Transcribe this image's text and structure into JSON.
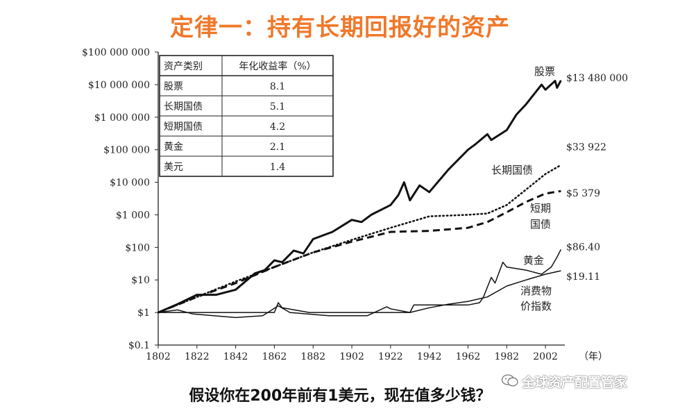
{
  "header": {
    "title": "定律一：持有长期回报好的资产"
  },
  "footer": {
    "question": "假设你在200年前有1美元，现在值多少钱？",
    "watermark": "全球资产配置管家"
  },
  "returns_table": {
    "headers": [
      "资产类别",
      "年化收益率（%）"
    ],
    "rows": [
      {
        "asset": "股票",
        "rate": "8.1"
      },
      {
        "asset": "长期国债",
        "rate": "5.1"
      },
      {
        "asset": "短期国债",
        "rate": "4.2"
      },
      {
        "asset": "黄金",
        "rate": "2.1"
      },
      {
        "asset": "美元",
        "rate": "1.4"
      }
    ]
  },
  "chart_data": {
    "type": "line",
    "scale": "log",
    "title": "",
    "xlabel": "（年）",
    "ylabel": "",
    "xlim": [
      1802,
      2012
    ],
    "ylim": [
      0.1,
      100000000
    ],
    "x_ticks": [
      "1802",
      "1822",
      "1842",
      "1862",
      "1882",
      "1902",
      "1922",
      "1942",
      "1962",
      "1982",
      "2002"
    ],
    "y_ticks": [
      {
        "value": 0.1,
        "label": "$0.1"
      },
      {
        "value": 1,
        "label": "$1"
      },
      {
        "value": 10,
        "label": "$10"
      },
      {
        "value": 100,
        "label": "$100"
      },
      {
        "value": 1000,
        "label": "$1 000"
      },
      {
        "value": 10000,
        "label": "$10 000"
      },
      {
        "value": 100000,
        "label": "$100 000"
      },
      {
        "value": 1000000,
        "label": "$1 000 000"
      },
      {
        "value": 10000000,
        "label": "$10 000 000"
      },
      {
        "value": 100000000,
        "label": "$100 000 000"
      }
    ],
    "grid": false,
    "series": [
      {
        "name": "股票",
        "style": "solid-thick",
        "end_label": "$13 480 000",
        "points": [
          [
            1802,
            1
          ],
          [
            1812,
            1.8
          ],
          [
            1822,
            3.5
          ],
          [
            1832,
            3.5
          ],
          [
            1842,
            5
          ],
          [
            1852,
            16
          ],
          [
            1857,
            20
          ],
          [
            1862,
            40
          ],
          [
            1866,
            35
          ],
          [
            1872,
            80
          ],
          [
            1877,
            65
          ],
          [
            1882,
            180
          ],
          [
            1892,
            300
          ],
          [
            1902,
            700
          ],
          [
            1907,
            600
          ],
          [
            1912,
            1000
          ],
          [
            1922,
            2000
          ],
          [
            1926,
            4000
          ],
          [
            1929,
            10000
          ],
          [
            1932,
            2800
          ],
          [
            1937,
            8000
          ],
          [
            1942,
            5000
          ],
          [
            1952,
            25000
          ],
          [
            1962,
            100000
          ],
          [
            1966,
            150000
          ],
          [
            1972,
            300000
          ],
          [
            1974,
            200000
          ],
          [
            1982,
            400000
          ],
          [
            1987,
            1200000
          ],
          [
            1992,
            2500000
          ],
          [
            2000,
            10000000
          ],
          [
            2002,
            7000000
          ],
          [
            2007,
            13000000
          ],
          [
            2008,
            8000000
          ],
          [
            2010,
            13480000
          ]
        ]
      },
      {
        "name": "长期国债",
        "style": "dotted",
        "end_label": "$33 922",
        "points": [
          [
            1802,
            1
          ],
          [
            1822,
            3
          ],
          [
            1842,
            9
          ],
          [
            1862,
            25
          ],
          [
            1882,
            70
          ],
          [
            1902,
            170
          ],
          [
            1922,
            400
          ],
          [
            1942,
            900
          ],
          [
            1962,
            1000
          ],
          [
            1972,
            1100
          ],
          [
            1982,
            2000
          ],
          [
            1992,
            6000
          ],
          [
            2002,
            18000
          ],
          [
            2010,
            33922
          ]
        ]
      },
      {
        "name": "短期国债",
        "style": "dashed",
        "end_label": "$5 379",
        "points": [
          [
            1802,
            1
          ],
          [
            1822,
            3
          ],
          [
            1842,
            8
          ],
          [
            1862,
            25
          ],
          [
            1882,
            70
          ],
          [
            1902,
            150
          ],
          [
            1922,
            300
          ],
          [
            1942,
            320
          ],
          [
            1962,
            400
          ],
          [
            1972,
            600
          ],
          [
            1982,
            1200
          ],
          [
            1992,
            2500
          ],
          [
            2002,
            4500
          ],
          [
            2010,
            5379
          ]
        ]
      },
      {
        "name": "黄金",
        "style": "solid",
        "end_label": "$86.40",
        "points": [
          [
            1802,
            1
          ],
          [
            1812,
            1
          ],
          [
            1830,
            1
          ],
          [
            1862,
            1
          ],
          [
            1864,
            2
          ],
          [
            1866,
            1.4
          ],
          [
            1880,
            1
          ],
          [
            1912,
            1
          ],
          [
            1922,
            1
          ],
          [
            1932,
            1
          ],
          [
            1934,
            1.7
          ],
          [
            1942,
            1.7
          ],
          [
            1962,
            1.7
          ],
          [
            1968,
            2
          ],
          [
            1970,
            3
          ],
          [
            1974,
            12
          ],
          [
            1976,
            8
          ],
          [
            1980,
            35
          ],
          [
            1982,
            25
          ],
          [
            1992,
            20
          ],
          [
            2000,
            15
          ],
          [
            2005,
            25
          ],
          [
            2008,
            50
          ],
          [
            2010,
            86.4
          ]
        ]
      },
      {
        "name": "消费物价指数",
        "style": "solid",
        "end_label": "$19.11",
        "points": [
          [
            1802,
            1
          ],
          [
            1812,
            1.2
          ],
          [
            1820,
            0.9
          ],
          [
            1842,
            0.7
          ],
          [
            1856,
            0.8
          ],
          [
            1864,
            1.6
          ],
          [
            1870,
            1
          ],
          [
            1890,
            0.8
          ],
          [
            1910,
            0.8
          ],
          [
            1920,
            1.5
          ],
          [
            1922,
            1.3
          ],
          [
            1932,
            1
          ],
          [
            1942,
            1.4
          ],
          [
            1952,
            1.8
          ],
          [
            1962,
            2.2
          ],
          [
            1972,
            3
          ],
          [
            1982,
            6.5
          ],
          [
            1992,
            10
          ],
          [
            2002,
            15
          ],
          [
            2010,
            19.11
          ]
        ]
      }
    ],
    "curve_labels": [
      {
        "series": "股票",
        "text": "股票"
      },
      {
        "series": "长期国债",
        "text": "长期国债"
      },
      {
        "series": "短期国债",
        "text": "短期"
      },
      {
        "series": "短期国债",
        "text": "国债"
      },
      {
        "series": "黄金",
        "text": "黄金"
      },
      {
        "series": "消费物价指数",
        "text": "消费物"
      },
      {
        "series": "消费物价指数",
        "text": "价指数"
      }
    ]
  }
}
